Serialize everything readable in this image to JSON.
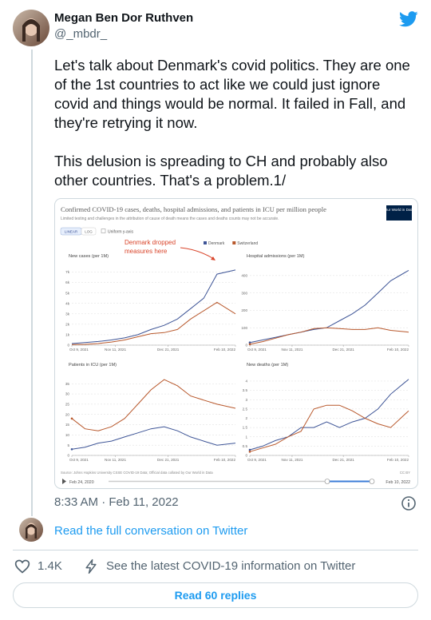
{
  "tweet": {
    "name": "Megan Ben Dor Ruthven",
    "handle": "@_mbdr_",
    "paragraphs": [
      "Let's talk about Denmark's covid politics. They are one of the 1st countries to act like we could just ignore covid and things would be normal. It failed in Fall, and they're retrying it now.",
      "This delusion is spreading to CH and probably also other countries. That's a problem.1/"
    ],
    "time": "8:33 AM · Feb 11, 2022",
    "conversation_link": "Read the full conversation on Twitter",
    "likes": "1.4K",
    "covid_info": "See the latest COVID-19 information on Twitter",
    "replies_button": "Read 60 replies"
  },
  "embed": {
    "title": "Confirmed COVID-19 cases, deaths, hospital admissions, and patients in ICU per million people",
    "subtitle": "Limited testing and challenges in the attribution of cause of death means the cases and deaths counts may not be accurate.",
    "logo": "Our World in Data",
    "linear": "LINEAR",
    "log": "LOG",
    "uniform": "Uniform y-axis",
    "source": "Source: Johns Hopkins University CSSE COVID-19 Data; Official data collated by Our World in Data",
    "license": "CC BY",
    "timeline_start": "Feb 24, 2020",
    "timeline_end": "Feb 10, 2022"
  },
  "chart_data": [
    {
      "type": "line",
      "title": "New cases (per 1M)",
      "legend": true,
      "annotation": [
        "Denmark dropped",
        "measures here"
      ],
      "x": [
        "2021-10-09",
        "2021-10-19",
        "2021-10-29",
        "2021-11-08",
        "2021-11-18",
        "2021-11-28",
        "2021-12-08",
        "2021-12-18",
        "2021-12-28",
        "2022-01-07",
        "2022-01-17",
        "2022-01-27",
        "2022-02-10"
      ],
      "xlim": [
        "2021-10-09",
        "2022-02-10"
      ],
      "xticks": [
        {
          "value": "2021-10-09",
          "label": "Oct 9, 2021"
        },
        {
          "value": "2021-11-11",
          "label": "Nov 11, 2021"
        },
        {
          "value": "2021-12-21",
          "label": "Dec 21, 2021"
        },
        {
          "value": "2022-02-10",
          "label": "Feb 10, 2022"
        }
      ],
      "ylim": [
        0,
        7500
      ],
      "yticks": [
        0,
        {
          "value": 1000,
          "label": "1k"
        },
        {
          "value": 2000,
          "label": "2k"
        },
        {
          "value": 3000,
          "label": "3k"
        },
        {
          "value": 4000,
          "label": "4k"
        },
        {
          "value": 5000,
          "label": "5k"
        },
        {
          "value": 6000,
          "label": "6k"
        },
        {
          "value": 7000,
          "label": "7k"
        }
      ],
      "series": [
        {
          "name": "Denmark",
          "color": "#3d5496",
          "values": [
            150,
            250,
            350,
            500,
            700,
            1000,
            1500,
            1900,
            2500,
            3500,
            4500,
            6800,
            7200
          ]
        },
        {
          "name": "Switzerland",
          "color": "#b8582c",
          "values": [
            50,
            80,
            150,
            300,
            500,
            800,
            1100,
            1200,
            1500,
            2500,
            3300,
            4100,
            3000
          ]
        }
      ]
    },
    {
      "type": "line",
      "title": "Hospital admissions (per 1M)",
      "x": [
        "2021-10-09",
        "2021-10-19",
        "2021-10-29",
        "2021-11-08",
        "2021-11-18",
        "2021-11-28",
        "2021-12-08",
        "2021-12-18",
        "2021-12-28",
        "2022-01-07",
        "2022-01-17",
        "2022-01-27",
        "2022-02-10"
      ],
      "xlim": [
        "2021-10-09",
        "2022-02-10"
      ],
      "xticks": [
        {
          "value": "2021-10-09",
          "label": "Oct 9, 2021"
        },
        {
          "value": "2021-11-11",
          "label": "Nov 11, 2021"
        },
        {
          "value": "2021-12-21",
          "label": "Dec 21, 2021"
        },
        {
          "value": "2022-02-10",
          "label": "Feb 10, 2022"
        }
      ],
      "ylim": [
        0,
        450
      ],
      "yticks": [
        0,
        100,
        200,
        300,
        400
      ],
      "series": [
        {
          "color": "#3d5496",
          "values": [
            15,
            30,
            45,
            60,
            75,
            90,
            100,
            140,
            180,
            230,
            300,
            370,
            430
          ]
        },
        {
          "color": "#b8582c",
          "values": [
            5,
            20,
            40,
            60,
            75,
            95,
            100,
            95,
            90,
            90,
            100,
            85,
            75
          ]
        }
      ]
    },
    {
      "type": "line",
      "title": "Patients in ICU (per 1M)",
      "x": [
        "2021-10-09",
        "2021-10-19",
        "2021-10-29",
        "2021-11-08",
        "2021-11-18",
        "2021-11-28",
        "2021-12-08",
        "2021-12-18",
        "2021-12-28",
        "2022-01-07",
        "2022-01-17",
        "2022-01-27",
        "2022-02-10"
      ],
      "xlim": [
        "2021-10-09",
        "2022-02-10"
      ],
      "xticks": [
        {
          "value": "2021-10-09",
          "label": "Oct 9, 2021"
        },
        {
          "value": "2021-11-11",
          "label": "Nov 11, 2021"
        },
        {
          "value": "2021-12-21",
          "label": "Dec 21, 2021"
        },
        {
          "value": "2022-02-10",
          "label": "Feb 10, 2022"
        }
      ],
      "ylim": [
        0,
        39
      ],
      "yticks": [
        0,
        5,
        10,
        15,
        20,
        25,
        30,
        35
      ],
      "series": [
        {
          "color": "#3d5496",
          "values": [
            3,
            4,
            6,
            7,
            9,
            11,
            13,
            14,
            12,
            9,
            7,
            5,
            6
          ]
        },
        {
          "color": "#b8582c",
          "values": [
            18,
            13,
            12,
            14,
            18,
            25,
            32,
            37,
            34,
            29,
            27,
            25,
            23
          ]
        }
      ]
    },
    {
      "type": "line",
      "title": "New deaths (per 1M)",
      "x": [
        "2021-10-09",
        "2021-10-19",
        "2021-10-29",
        "2021-11-08",
        "2021-11-18",
        "2021-11-28",
        "2021-12-08",
        "2021-12-18",
        "2021-12-28",
        "2022-01-07",
        "2022-01-17",
        "2022-01-27",
        "2022-02-10"
      ],
      "xlim": [
        "2021-10-09",
        "2022-02-10"
      ],
      "xticks": [
        {
          "value": "2021-10-09",
          "label": "Oct 9, 2021"
        },
        {
          "value": "2021-11-11",
          "label": "Nov 11, 2021"
        },
        {
          "value": "2021-12-21",
          "label": "Dec 21, 2021"
        },
        {
          "value": "2022-02-10",
          "label": "Feb 10, 2022"
        }
      ],
      "ylim": [
        0,
        4.3
      ],
      "yticks": [
        0,
        0.5,
        1,
        1.5,
        2,
        2.5,
        3,
        3.5,
        4
      ],
      "series": [
        {
          "color": "#3d5496",
          "values": [
            0.3,
            0.5,
            0.8,
            1.0,
            1.5,
            1.5,
            1.8,
            1.5,
            1.8,
            2.0,
            2.5,
            3.3,
            4.1
          ]
        },
        {
          "color": "#b8582c",
          "values": [
            0.2,
            0.4,
            0.6,
            1.0,
            1.3,
            2.5,
            2.7,
            2.7,
            2.4,
            2.0,
            1.7,
            1.5,
            2.4
          ]
        }
      ]
    }
  ]
}
